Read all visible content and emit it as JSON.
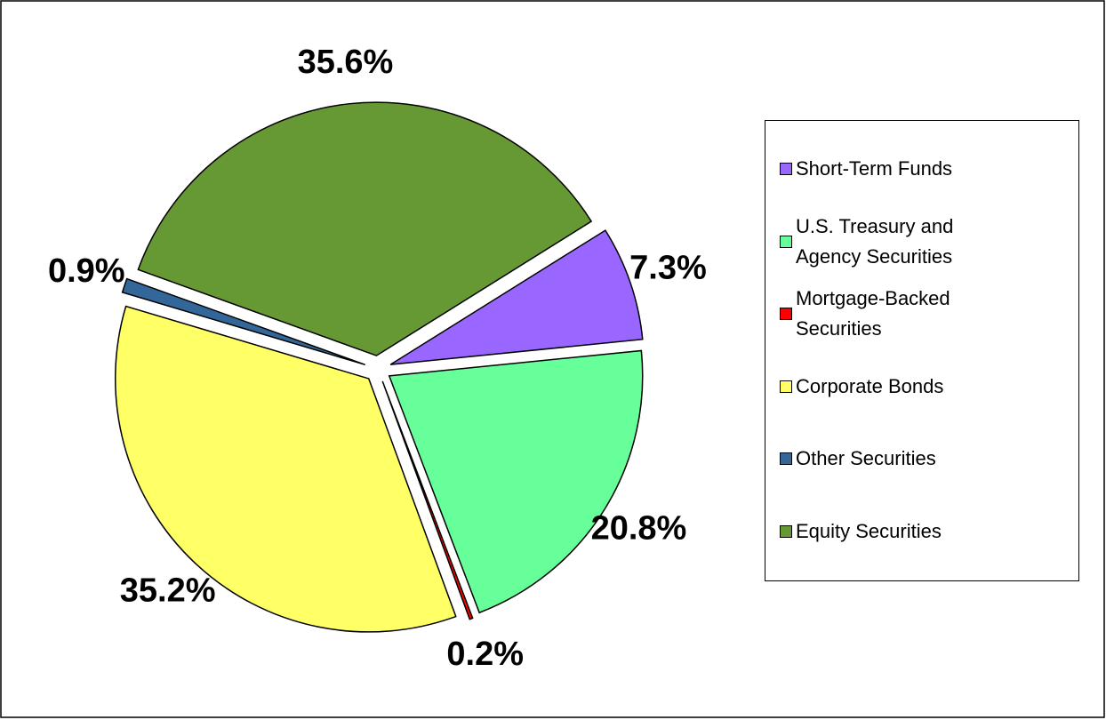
{
  "chart_data": {
    "type": "pie",
    "categories": [
      "Short-Term Funds",
      "U.S. Treasury and Agency Securities",
      "Mortgage-Backed Securities",
      "Corporate Bonds",
      "Other Securities",
      "Equity Securities"
    ],
    "values": [
      7.3,
      20.8,
      0.2,
      35.2,
      0.9,
      35.6
    ],
    "value_labels": [
      "7.3%",
      "20.8%",
      "0.2%",
      "35.2%",
      "0.9%",
      "35.6%"
    ],
    "colors": [
      "#9966ff",
      "#66ff99",
      "#ff0000",
      "#ffff66",
      "#336699",
      "#669933"
    ],
    "legend": "right"
  }
}
